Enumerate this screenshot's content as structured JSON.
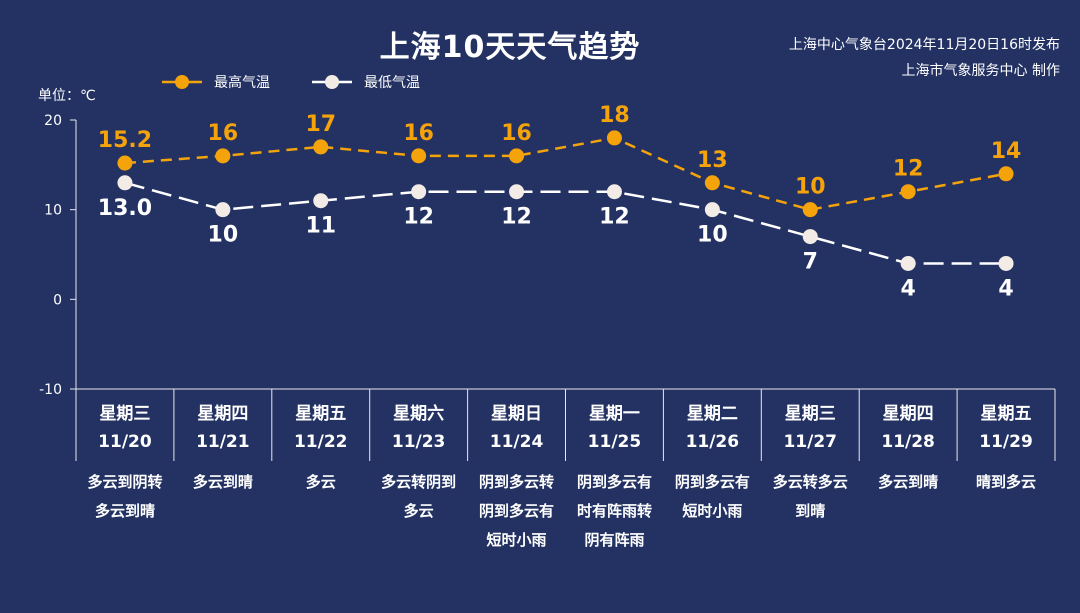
{
  "header": {
    "title": "上海10天天气趋势",
    "source_line1": "上海中心气象台2024年11月20日16时发布",
    "source_line2": "上海市气象服务中心 制作"
  },
  "unit_label": "单位：℃",
  "legend": {
    "high": "最高气温",
    "low": "最低气温"
  },
  "colors": {
    "background": "#233263",
    "high": "#f5a30a",
    "low": "#ffffff",
    "axis": "#e8e8e8"
  },
  "chart_data": {
    "type": "line",
    "categories": [
      "11/20",
      "11/21",
      "11/22",
      "11/23",
      "11/24",
      "11/25",
      "11/26",
      "11/27",
      "11/28",
      "11/29"
    ],
    "ylim": [
      -10,
      20
    ],
    "yticks": [
      "20",
      "10",
      "0",
      "-10"
    ],
    "ylabel": "单位：℃",
    "grid": false,
    "legend_position": "top-left",
    "series": [
      {
        "name": "最高气温",
        "values": [
          15.2,
          16,
          17,
          16,
          16,
          18,
          13,
          10,
          12,
          14
        ],
        "labels": [
          "15.2",
          "16",
          "17",
          "16",
          "16",
          "18",
          "13",
          "10",
          "12",
          "14"
        ]
      },
      {
        "name": "最低气温",
        "values": [
          13.0,
          10,
          11,
          12,
          12,
          12,
          10,
          7,
          4,
          4
        ],
        "labels": [
          "13.0",
          "10",
          "11",
          "12",
          "12",
          "12",
          "10",
          "7",
          "4",
          "4"
        ]
      }
    ]
  },
  "days": [
    {
      "weekday": "星期三",
      "date": "11/20",
      "weather": "多云到阴转多云到晴"
    },
    {
      "weekday": "星期四",
      "date": "11/21",
      "weather": "多云到晴"
    },
    {
      "weekday": "星期五",
      "date": "11/22",
      "weather": "多云"
    },
    {
      "weekday": "星期六",
      "date": "11/23",
      "weather": "多云转阴到多云"
    },
    {
      "weekday": "星期日",
      "date": "11/24",
      "weather": "阴到多云转阴到多云有短时小雨"
    },
    {
      "weekday": "星期一",
      "date": "11/25",
      "weather": "阴到多云有时有阵雨转阴有阵雨"
    },
    {
      "weekday": "星期二",
      "date": "11/26",
      "weather": "阴到多云有短时小雨"
    },
    {
      "weekday": "星期三",
      "date": "11/27",
      "weather": "多云转多云到晴"
    },
    {
      "weekday": "星期四",
      "date": "11/28",
      "weather": "多云到晴"
    },
    {
      "weekday": "星期五",
      "date": "11/29",
      "weather": "晴到多云"
    }
  ]
}
